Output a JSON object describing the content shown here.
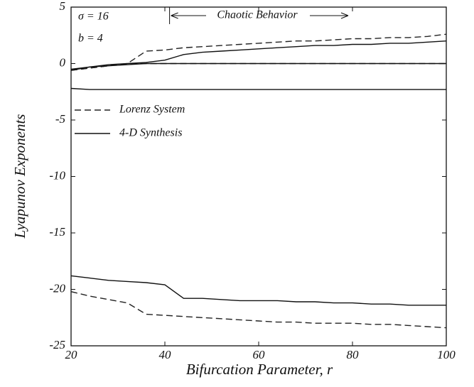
{
  "chart_data": {
    "type": "line",
    "xlabel": "Bifurcation Parameter, r",
    "ylabel": "Lyapunov Exponents",
    "annotations": [
      "σ = 16",
      "b = 4"
    ],
    "region": {
      "text": "Chaotic Behavior",
      "x": 41
    },
    "xlim": [
      20,
      100
    ],
    "xticks": [
      20,
      40,
      60,
      80,
      100
    ],
    "ylim": [
      -25,
      5
    ],
    "yticks": [
      5,
      0,
      -5,
      -10,
      -15,
      -20,
      -25
    ],
    "x": [
      20,
      24,
      28,
      32,
      36,
      40,
      44,
      48,
      52,
      56,
      60,
      64,
      68,
      72,
      76,
      80,
      84,
      88,
      92,
      96,
      100
    ],
    "series": [
      {
        "name": "Lorenz System",
        "color": "#222",
        "dash": "dashed",
        "curves": [
          [
            -0.6,
            -0.4,
            -0.2,
            0,
            1.1,
            1.2,
            1.4,
            1.5,
            1.6,
            1.7,
            1.8,
            1.9,
            2.0,
            2.0,
            2.1,
            2.2,
            2.2,
            2.3,
            2.3,
            2.4,
            2.6
          ],
          [
            -0.6,
            -0.4,
            -0.2,
            0,
            0,
            0,
            0,
            0,
            0,
            0,
            0,
            0,
            0,
            0,
            0,
            0,
            0,
            0,
            0,
            0,
            0
          ],
          [
            -20.2,
            -20.6,
            -20.9,
            -21.2,
            -22.2,
            -22.3,
            -22.4,
            -22.5,
            -22.6,
            -22.7,
            -22.8,
            -22.9,
            -22.9,
            -23.0,
            -23.0,
            -23.0,
            -23.1,
            -23.1,
            -23.2,
            -23.3,
            -23.4
          ]
        ]
      },
      {
        "name": "4-D Synthesis",
        "color": "#111",
        "dash": "solid",
        "curves": [
          [
            -0.6,
            -0.3,
            -0.1,
            0,
            0.1,
            0.3,
            0.8,
            1.0,
            1.1,
            1.2,
            1.3,
            1.4,
            1.5,
            1.6,
            1.6,
            1.7,
            1.7,
            1.8,
            1.8,
            1.9,
            2.0
          ],
          [
            -0.5,
            -0.3,
            -0.2,
            -0.1,
            0,
            0,
            0,
            0,
            0,
            0,
            0,
            0,
            0,
            0,
            0,
            0,
            0,
            0,
            0,
            0,
            0
          ],
          [
            -2.2,
            -2.3,
            -2.3,
            -2.3,
            -2.3,
            -2.3,
            -2.3,
            -2.3,
            -2.3,
            -2.3,
            -2.3,
            -2.3,
            -2.3,
            -2.3,
            -2.3,
            -2.3,
            -2.3,
            -2.3,
            -2.3,
            -2.3,
            -2.3
          ],
          [
            -18.8,
            -19.0,
            -19.2,
            -19.3,
            -19.4,
            -19.6,
            -20.8,
            -20.8,
            -20.9,
            -21.0,
            -21.0,
            -21.0,
            -21.1,
            -21.1,
            -21.2,
            -21.2,
            -21.3,
            -21.3,
            -21.4,
            -21.4,
            -21.4
          ]
        ]
      }
    ]
  }
}
